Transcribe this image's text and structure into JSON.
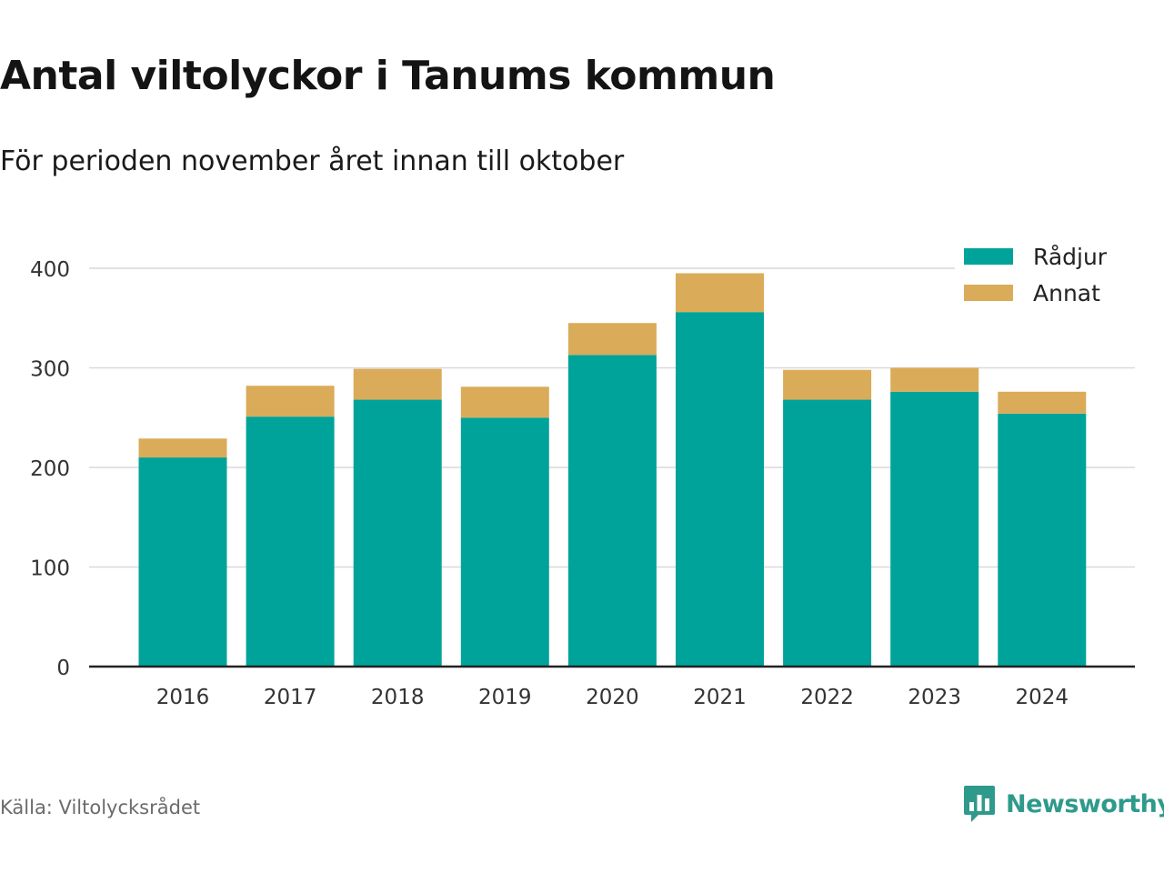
{
  "header": {
    "title": "Antal viltolyckor i Tanums kommun",
    "subtitle": "För perioden november året innan till oktober"
  },
  "footer": {
    "source": "Källa: Viltolycksrådet",
    "brand": "Newsworthy",
    "brand_icon": "bar-chart-speech-bubble-icon"
  },
  "colors": {
    "radjur": "#00a39a",
    "annat": "#daab58",
    "grid": "#d9d9d9",
    "axis": "#222222",
    "brand": "#2e9a8b"
  },
  "chart_data": {
    "type": "bar",
    "stacked": true,
    "categories": [
      "2016",
      "2017",
      "2018",
      "2019",
      "2020",
      "2021",
      "2022",
      "2023",
      "2024"
    ],
    "series": [
      {
        "name": "Rådjur",
        "color": "#00a39a",
        "values": [
          210,
          251,
          268,
          250,
          313,
          356,
          268,
          276,
          254
        ]
      },
      {
        "name": "Annat",
        "color": "#daab58",
        "values": [
          19,
          31,
          31,
          31,
          32,
          39,
          30,
          24,
          22
        ]
      }
    ],
    "y_ticks": [
      0,
      100,
      200,
      300,
      400
    ],
    "ylim": [
      0,
      400
    ],
    "grid": true,
    "legend_position": "top-right"
  }
}
